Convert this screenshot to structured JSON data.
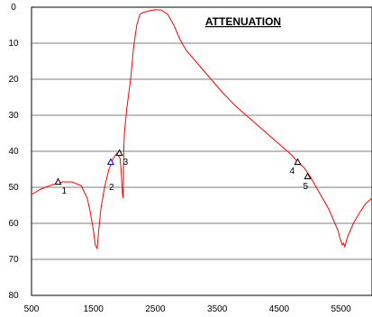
{
  "chart_data": {
    "type": "line",
    "title": "ATTENUATION",
    "xlabel": "",
    "ylabel": "",
    "xlim": [
      500,
      6000
    ],
    "ylim": [
      0,
      80
    ],
    "y_inverted": true,
    "grid": {
      "vertical": false,
      "horizontal": true
    },
    "x_ticks": [
      500,
      1500,
      2500,
      3500,
      4500,
      5500
    ],
    "y_ticks": [
      0,
      10,
      20,
      30,
      40,
      50,
      60,
      70,
      80
    ],
    "series": [
      {
        "color": "#ff0000",
        "points": [
          [
            500,
            52
          ],
          [
            650,
            50.5
          ],
          [
            800,
            49.5
          ],
          [
            1000,
            48.5
          ],
          [
            1150,
            48.5
          ],
          [
            1300,
            49.5
          ],
          [
            1400,
            53
          ],
          [
            1450,
            57
          ],
          [
            1500,
            62
          ],
          [
            1530,
            66
          ],
          [
            1560,
            67
          ],
          [
            1580,
            63
          ],
          [
            1620,
            56
          ],
          [
            1680,
            50
          ],
          [
            1750,
            45
          ],
          [
            1820,
            42
          ],
          [
            1880,
            40.5
          ],
          [
            1930,
            42
          ],
          [
            1950,
            46
          ],
          [
            1970,
            52
          ],
          [
            1980,
            53
          ],
          [
            1985,
            48
          ],
          [
            1990,
            40
          ],
          [
            2000,
            35
          ],
          [
            2040,
            28
          ],
          [
            2100,
            20
          ],
          [
            2150,
            11
          ],
          [
            2200,
            5
          ],
          [
            2250,
            2
          ],
          [
            2300,
            1.5
          ],
          [
            2400,
            1
          ],
          [
            2500,
            0.7
          ],
          [
            2600,
            0.8
          ],
          [
            2700,
            2
          ],
          [
            2800,
            5
          ],
          [
            2900,
            9
          ],
          [
            3000,
            12
          ],
          [
            3200,
            16
          ],
          [
            3400,
            20
          ],
          [
            3600,
            24
          ],
          [
            3800,
            27.5
          ],
          [
            4000,
            30.5
          ],
          [
            4200,
            33.5
          ],
          [
            4400,
            36.5
          ],
          [
            4600,
            39.5
          ],
          [
            4700,
            41
          ],
          [
            4800,
            43
          ],
          [
            4900,
            44.5
          ],
          [
            5000,
            47
          ],
          [
            5100,
            50
          ],
          [
            5200,
            53
          ],
          [
            5300,
            56
          ],
          [
            5400,
            60
          ],
          [
            5450,
            62
          ],
          [
            5480,
            64
          ],
          [
            5500,
            65
          ],
          [
            5520,
            66
          ],
          [
            5540,
            65.5
          ],
          [
            5560,
            66.5
          ],
          [
            5600,
            64
          ],
          [
            5650,
            62
          ],
          [
            5700,
            60
          ],
          [
            5800,
            57
          ],
          [
            5900,
            54.5
          ],
          [
            6000,
            53
          ]
        ]
      }
    ],
    "markers": [
      {
        "label": "1",
        "x": 930,
        "y": 48.5,
        "color": "#000000"
      },
      {
        "label": "2",
        "x": 1780,
        "y": 43,
        "color": "#0000cc"
      },
      {
        "label": "3",
        "x": 1920,
        "y": 40.5,
        "color": "#000000"
      },
      {
        "label": "4",
        "x": 4800,
        "y": 43,
        "color": "#000000"
      },
      {
        "label": "5",
        "x": 4960,
        "y": 47,
        "color": "#000000"
      }
    ]
  }
}
